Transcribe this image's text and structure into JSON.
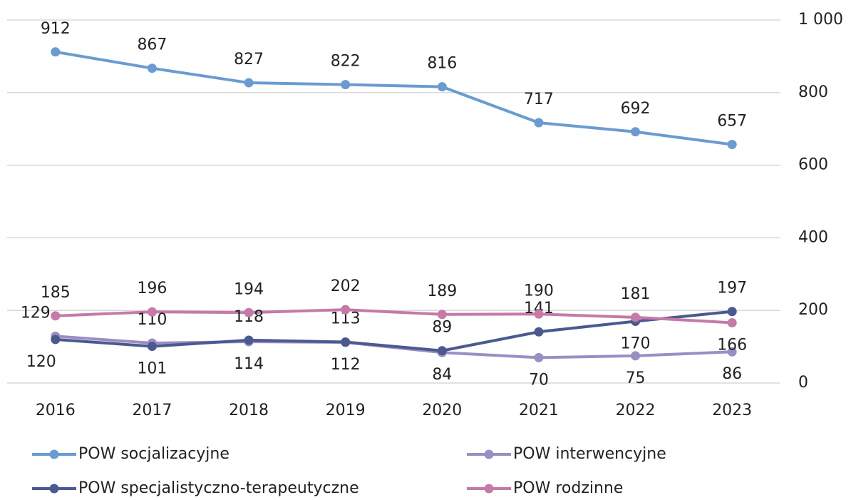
{
  "chart_data": {
    "type": "line",
    "categories": [
      "2016",
      "2017",
      "2018",
      "2019",
      "2020",
      "2021",
      "2022",
      "2023"
    ],
    "series": [
      {
        "name": "POW socjalizacyjne",
        "color": "#6a9bd1",
        "values": [
          912,
          867,
          827,
          822,
          816,
          717,
          692,
          657
        ]
      },
      {
        "name": "POW interwencyjne",
        "color": "#9b8ec4",
        "values": [
          129,
          110,
          114,
          112,
          84,
          70,
          75,
          86
        ]
      },
      {
        "name": "POW specjalistyczno-terapeutyczne",
        "color": "#4a5a8f",
        "values": [
          120,
          101,
          118,
          113,
          89,
          141,
          170,
          197
        ]
      },
      {
        "name": "POW rodzinne",
        "color": "#c57aa8",
        "values": [
          185,
          196,
          194,
          202,
          189,
          190,
          181,
          166
        ]
      }
    ],
    "ylim": [
      0,
      1000
    ],
    "yticks": [
      0,
      200,
      400,
      600,
      800,
      {
        "value": 1000,
        "label": "1 000"
      }
    ],
    "grid": true,
    "legend": "bottom"
  }
}
